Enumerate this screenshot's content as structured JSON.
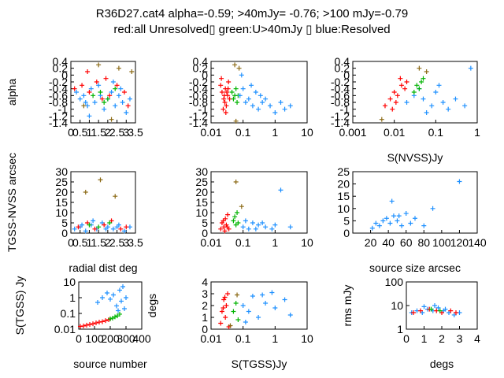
{
  "title_line1": "R36D27.cat4 alpha=-0.59; >40mJy= -0.76; >100 mJy=-0.79",
  "title_line2": "red:all Unresolved▯ green:U>40mJy ▯ blue:Resolved",
  "colors": {
    "red": "#ff0000",
    "green": "#00b400",
    "blue": "#1e90ff",
    "olive": "#8b6914"
  },
  "chart_data": [
    {
      "type": "scatter",
      "xlabel": "",
      "ylabel": "alpha",
      "xscale": "linear",
      "xlim": [
        0,
        3.5
      ],
      "ylim": [
        -1.4,
        0.4
      ],
      "xticks": [
        "0",
        "0.5",
        "1",
        "1.5",
        "2",
        "2.5",
        "3",
        "3.5"
      ],
      "yticks": [
        "-1.4",
        "-1.2",
        "-1",
        "-0.8",
        "-0.6",
        "-0.4",
        "-0.2",
        "0",
        "0.2",
        "0.4"
      ],
      "series": [
        {
          "color": "blue",
          "x": [
            0.3,
            0.5,
            0.7,
            0.9,
            1.1,
            1.3,
            1.6,
            1.8,
            2.0,
            2.2,
            2.4,
            2.6,
            2.8,
            3.0,
            3.2,
            1.0,
            1.5,
            2.3,
            2.7,
            0.8
          ],
          "y": [
            -0.5,
            -0.7,
            -0.6,
            -0.9,
            -0.4,
            -0.8,
            -0.6,
            -1.0,
            -0.7,
            -0.5,
            -0.9,
            -0.6,
            -0.8,
            -1.1,
            -0.7,
            -1.2,
            -0.3,
            -0.2,
            -0.4,
            -0.8
          ]
        },
        {
          "color": "red",
          "x": [
            0.2,
            0.6,
            1.0,
            1.4,
            1.7,
            2.1,
            2.5,
            2.9,
            3.1,
            0.9,
            1.9
          ],
          "y": [
            -0.4,
            -0.3,
            -0.5,
            -0.2,
            -0.7,
            -0.6,
            -0.3,
            -0.5,
            -0.9,
            0.1,
            -0.1
          ]
        },
        {
          "color": "green",
          "x": [
            1.2,
            1.6,
            2.0,
            2.4,
            1.8
          ],
          "y": [
            -0.6,
            -0.5,
            -0.7,
            -0.4,
            -0.8
          ]
        },
        {
          "color": "olive",
          "x": [
            1.5,
            2.2,
            3.3,
            0.7,
            2.6
          ],
          "y": [
            0.3,
            -1.3,
            0.1,
            -0.9,
            0.2
          ]
        }
      ]
    },
    {
      "type": "scatter",
      "xlabel": "",
      "ylabel": "",
      "xscale": "log",
      "xlim": [
        0.01,
        10
      ],
      "ylim": [
        -1.4,
        0.4
      ],
      "xticks": [
        "0.01",
        "0.1",
        "1",
        "10"
      ],
      "yticks": [
        "-1.4",
        "-1.2",
        "-1",
        "-0.8",
        "-0.6",
        "-0.4",
        "-0.2",
        "0",
        "0.2",
        "0.4"
      ],
      "series": [
        {
          "color": "red",
          "x": [
            0.02,
            0.022,
            0.025,
            0.028,
            0.03,
            0.033,
            0.035,
            0.024,
            0.027,
            0.031,
            0.038,
            0.021,
            0.026,
            0.029,
            0.034
          ],
          "y": [
            -0.3,
            -0.5,
            -0.7,
            -0.4,
            -0.9,
            -0.6,
            -0.2,
            -1.0,
            -0.8,
            -0.5,
            -0.7,
            -0.1,
            -0.6,
            -1.1,
            -0.4
          ]
        },
        {
          "color": "green",
          "x": [
            0.045,
            0.05,
            0.055,
            0.06,
            0.065,
            0.07
          ],
          "y": [
            -0.5,
            -0.7,
            -0.6,
            -0.4,
            -0.8,
            -0.6
          ]
        },
        {
          "color": "blue",
          "x": [
            0.08,
            0.1,
            0.12,
            0.15,
            0.2,
            0.25,
            0.3,
            0.4,
            0.5,
            0.7,
            1.0,
            1.5,
            2.0,
            3.0,
            0.09,
            0.18,
            0.35
          ],
          "y": [
            -0.6,
            -0.4,
            -0.8,
            -0.7,
            -0.9,
            -0.5,
            -1.0,
            -0.8,
            -0.7,
            -0.9,
            -1.1,
            -0.8,
            -1.0,
            -0.9,
            0.0,
            -0.3,
            -0.6
          ]
        },
        {
          "color": "olive",
          "x": [
            0.055,
            0.06,
            0.075
          ],
          "y": [
            0.3,
            -1.35,
            0.2
          ]
        }
      ]
    },
    {
      "type": "scatter",
      "xlabel": "S(NVSS)Jy",
      "ylabel": "",
      "xscale": "log",
      "xlim": [
        0.001,
        1
      ],
      "ylim": [
        -1.4,
        0.4
      ],
      "xticks": [
        "0.001",
        "0.01",
        "0.1",
        "1"
      ],
      "yticks": [
        "-1.4",
        "-1.2",
        "-1",
        "-0.8",
        "-0.6",
        "-0.4",
        "-0.2",
        "0",
        "0.2",
        "0.4"
      ],
      "series": [
        {
          "color": "blue",
          "x": [
            0.02,
            0.03,
            0.05,
            0.08,
            0.1,
            0.15,
            0.2,
            0.3,
            0.5,
            0.7,
            0.04,
            0.06,
            0.12
          ],
          "y": [
            -0.8,
            -0.6,
            -0.7,
            -0.9,
            -0.5,
            -0.8,
            -1.0,
            -0.7,
            -0.9,
            0.2,
            -0.4,
            -1.1,
            -0.3
          ]
        },
        {
          "color": "red",
          "x": [
            0.006,
            0.008,
            0.01,
            0.012,
            0.015,
            0.018,
            0.02,
            0.009,
            0.011,
            0.014
          ],
          "y": [
            -0.9,
            -0.7,
            -0.5,
            -0.6,
            -0.3,
            -0.4,
            -0.2,
            -1.0,
            -0.8,
            -0.1
          ]
        },
        {
          "color": "green",
          "x": [
            0.03,
            0.035,
            0.04,
            0.045,
            0.05
          ],
          "y": [
            -0.5,
            -0.3,
            -0.4,
            -0.2,
            -0.1
          ]
        },
        {
          "color": "olive",
          "x": [
            0.005,
            0.04,
            0.06
          ],
          "y": [
            -1.3,
            0.2,
            0.1
          ]
        }
      ]
    },
    {
      "type": "scatter",
      "xlabel": "radial dist deg",
      "ylabel": "TGSS-NVSS arcsec",
      "xscale": "linear",
      "xlim": [
        0,
        3.5
      ],
      "ylim": [
        0,
        30
      ],
      "xticks": [
        "0",
        "0.5",
        "1",
        "1.5",
        "2",
        "2.5",
        "3",
        "3.5"
      ],
      "yticks": [
        "0",
        "5",
        "10",
        "15",
        "20",
        "25",
        "30"
      ],
      "series": [
        {
          "color": "blue",
          "x": [
            0.2,
            0.5,
            0.8,
            1.1,
            1.4,
            1.7,
            2.0,
            2.3,
            2.6,
            2.9,
            3.2,
            1.2,
            1.9,
            2.5,
            0.6
          ],
          "y": [
            2,
            3,
            1,
            4,
            2,
            5,
            3,
            2,
            4,
            1,
            3,
            6,
            2,
            3,
            4
          ]
        },
        {
          "color": "red",
          "x": [
            0.4,
            0.9,
            1.3,
            1.8,
            2.2,
            2.7,
            3.0
          ],
          "y": [
            3,
            5,
            2,
            4,
            6,
            2,
            3
          ]
        },
        {
          "color": "green",
          "x": [
            1.0,
            1.5,
            2.1
          ],
          "y": [
            4,
            3,
            5
          ]
        },
        {
          "color": "olive",
          "x": [
            1.6,
            0.8,
            2.4
          ],
          "y": [
            26,
            20,
            18
          ]
        }
      ]
    },
    {
      "type": "scatter",
      "xlabel": "",
      "ylabel": "",
      "xscale": "log",
      "xlim": [
        0.01,
        10
      ],
      "ylim": [
        0,
        30
      ],
      "xticks": [
        "0.01",
        "0.1",
        "1",
        "10"
      ],
      "yticks": [
        "0",
        "5",
        "10",
        "15",
        "20",
        "25",
        "30"
      ],
      "series": [
        {
          "color": "red",
          "x": [
            0.02,
            0.022,
            0.025,
            0.028,
            0.03,
            0.033,
            0.036,
            0.024,
            0.027,
            0.032
          ],
          "y": [
            2,
            5,
            3,
            7,
            4,
            9,
            2,
            6,
            1,
            3
          ]
        },
        {
          "color": "green",
          "x": [
            0.05,
            0.055,
            0.06,
            0.065,
            0.07
          ],
          "y": [
            6,
            8,
            4,
            10,
            5
          ]
        },
        {
          "color": "blue",
          "x": [
            0.1,
            0.15,
            0.2,
            0.3,
            0.5,
            0.8,
            1.0,
            1.5,
            3.0,
            0.12,
            0.25,
            0.4
          ],
          "y": [
            3,
            2,
            5,
            4,
            3,
            2,
            4,
            21,
            3,
            6,
            2,
            5
          ]
        },
        {
          "color": "olive",
          "x": [
            0.06,
            0.09
          ],
          "y": [
            25,
            13
          ]
        }
      ]
    },
    {
      "type": "scatter",
      "xlabel": "source size arcsec",
      "ylabel": "",
      "xscale": "linear",
      "xlim": [
        0,
        140
      ],
      "ylim": [
        0,
        25
      ],
      "xticks": [
        "20",
        "40",
        "60",
        "80",
        "100",
        "120",
        "140"
      ],
      "yticks": [
        "0",
        "5",
        "10",
        "15",
        "20",
        "25"
      ],
      "series": [
        {
          "color": "blue",
          "x": [
            22,
            26,
            30,
            34,
            38,
            42,
            46,
            50,
            55,
            60,
            65,
            70,
            80,
            90,
            44,
            52,
            120
          ],
          "y": [
            2,
            4,
            3,
            5,
            6,
            4,
            7,
            5,
            3,
            8,
            4,
            6,
            3,
            10,
            13,
            7,
            21
          ]
        }
      ]
    },
    {
      "type": "scatter",
      "xlabel": "source number",
      "ylabel": "S(TGSS) Jy",
      "xscale": "linear",
      "yscale": "log",
      "xlim": [
        0,
        400
      ],
      "ylim": [
        0.01,
        10
      ],
      "xticks": [
        "0",
        "100",
        "200",
        "300",
        "400"
      ],
      "yticks": [
        "0.01",
        "0.1",
        "1",
        "10"
      ],
      "series": [
        {
          "color": "red",
          "x": [
            10,
            30,
            50,
            70,
            90,
            110,
            130,
            150,
            170,
            190
          ],
          "y": [
            0.015,
            0.016,
            0.018,
            0.02,
            0.022,
            0.025,
            0.028,
            0.03,
            0.035,
            0.04
          ]
        },
        {
          "color": "green",
          "x": [
            200,
            215,
            230,
            245,
            260
          ],
          "y": [
            0.045,
            0.05,
            0.06,
            0.07,
            0.09
          ]
        },
        {
          "color": "blue",
          "x": [
            120,
            150,
            180,
            200,
            220,
            240,
            260,
            280,
            290,
            300,
            250,
            270
          ],
          "y": [
            0.5,
            1.0,
            2.0,
            0.8,
            1.5,
            0.3,
            3.0,
            5.0,
            0.2,
            1.0,
            0.15,
            0.6
          ]
        }
      ]
    },
    {
      "type": "scatter",
      "xlabel": "S(TGSS)Jy",
      "ylabel": "degs",
      "xscale": "log",
      "xlim": [
        0.01,
        10
      ],
      "ylim": [
        0,
        4
      ],
      "xticks": [
        "0.01",
        "0.1",
        "1",
        "10"
      ],
      "yticks": [
        "0",
        "1",
        "2",
        "3",
        "4"
      ],
      "series": [
        {
          "color": "red",
          "x": [
            0.02,
            0.022,
            0.025,
            0.028,
            0.03,
            0.033,
            0.036,
            0.024,
            0.027
          ],
          "y": [
            0.5,
            1.5,
            2.5,
            1.0,
            2.0,
            3.0,
            0.2,
            1.8,
            2.7
          ]
        },
        {
          "color": "green",
          "x": [
            0.05,
            0.06,
            0.07
          ],
          "y": [
            1.5,
            2.2,
            0.8
          ]
        },
        {
          "color": "blue",
          "x": [
            0.1,
            0.15,
            0.2,
            0.3,
            0.5,
            0.8,
            1.0,
            2.0,
            3.0,
            0.12,
            0.4
          ],
          "y": [
            2.0,
            1.5,
            2.8,
            1.0,
            2.2,
            3.1,
            1.8,
            2.5,
            1.2,
            0.6,
            2.9
          ]
        },
        {
          "color": "olive",
          "x": [
            0.065,
            0.04
          ],
          "y": [
            2.9,
            0.3
          ]
        }
      ]
    },
    {
      "type": "scatter",
      "xlabel": "degs",
      "ylabel": "rms mJy",
      "xscale": "linear",
      "yscale": "log",
      "xlim": [
        0,
        4
      ],
      "ylim": [
        1,
        100
      ],
      "xticks": [
        "0",
        "1",
        "2",
        "3",
        "4"
      ],
      "yticks": [
        "1",
        "10",
        "100"
      ],
      "series": [
        {
          "color": "blue",
          "x": [
            0.3,
            0.6,
            0.9,
            1.2,
            1.5,
            1.8,
            2.1,
            2.4,
            2.7,
            3.0,
            1.0,
            1.6,
            2.2
          ],
          "y": [
            5,
            6,
            5,
            7,
            6,
            8,
            6,
            5,
            4,
            5,
            9,
            10,
            7
          ]
        },
        {
          "color": "red",
          "x": [
            0.4,
            0.8,
            1.3,
            1.7,
            2.0,
            2.5,
            2.8
          ],
          "y": [
            5,
            6,
            7,
            6,
            5,
            6,
            5
          ]
        },
        {
          "color": "green",
          "x": [
            1.4,
            1.9
          ],
          "y": [
            7,
            6
          ]
        }
      ]
    }
  ]
}
